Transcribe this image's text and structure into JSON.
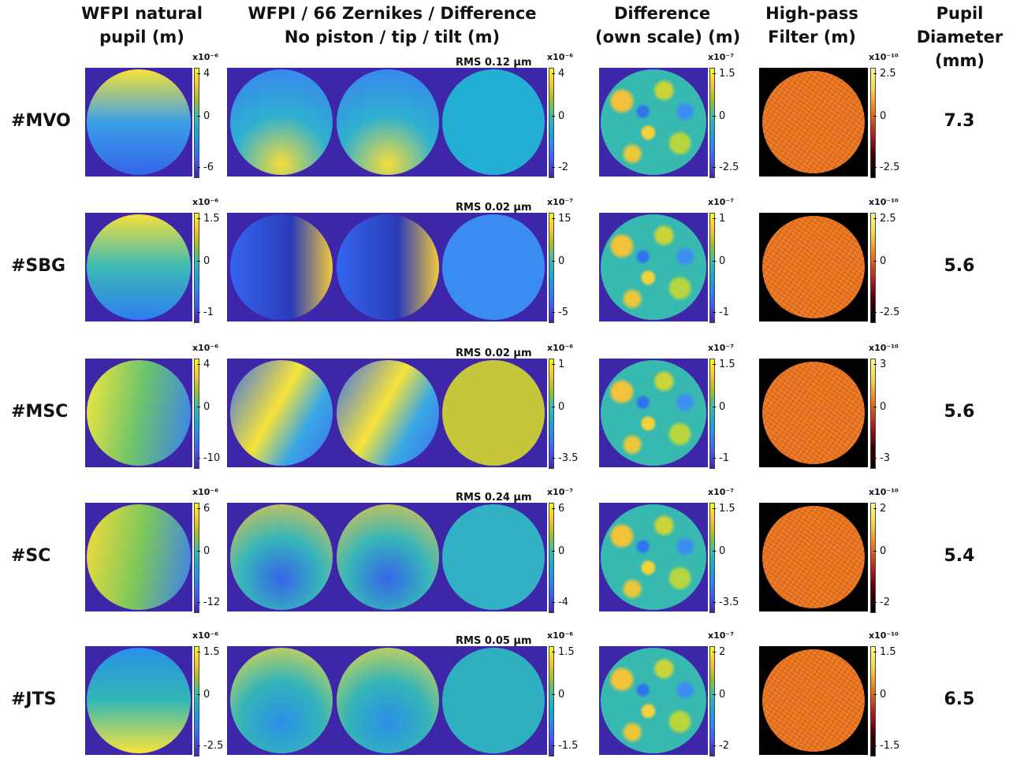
{
  "headers": {
    "col1": [
      "WFPI natural",
      "pupil (m)"
    ],
    "col2": [
      "WFPI / 66 Zernikes / Difference",
      "No piston / tip / tilt  (m)"
    ],
    "col3": [
      "Difference",
      "(own scale) (m)"
    ],
    "col4": [
      "High-pass",
      "Filter (m)"
    ],
    "col5": [
      "Pupil",
      "Diameter",
      "(mm)"
    ]
  },
  "rows": [
    {
      "label": "#MVO",
      "diameter": "7.3",
      "rms": "RMS 0.12 µm",
      "cb1": {
        "exp": "x10⁻⁶",
        "ticks": [
          "4",
          "0",
          "-6"
        ]
      },
      "cb2": {
        "exp": "x10⁻⁶",
        "ticks": [
          "4",
          "0",
          "-2"
        ]
      },
      "cb3": {
        "exp": "x10⁻⁷",
        "ticks": [
          "1.5",
          "0",
          "-2.5"
        ]
      },
      "cb4": {
        "exp": "x10⁻¹⁰",
        "ticks": [
          "2.5",
          "0",
          "-2.5"
        ]
      },
      "colors": {
        "natural": [
          "#f8e236",
          "#3aa0e8",
          "#3565e8"
        ],
        "zern": [
          "#3a7ff5",
          "#2fb0d0",
          "#f7dd3a"
        ],
        "diff": "#23aed4"
      }
    },
    {
      "label": "#SBG",
      "diameter": "5.6",
      "rms": "RMS 0.02 µm",
      "cb1": {
        "exp": "x10⁻⁶",
        "ticks": [
          "1.5",
          "0",
          "-1"
        ]
      },
      "cb2": {
        "exp": "x10⁻⁷",
        "ticks": [
          "15",
          "0",
          "-5"
        ]
      },
      "cb3": {
        "exp": "x10⁻⁷",
        "ticks": [
          "1",
          "0",
          "-1"
        ]
      },
      "cb4": {
        "exp": "x10⁻¹⁰",
        "ticks": [
          "2.5",
          "0",
          "-2.5"
        ]
      },
      "colors": {
        "natural": [
          "#2f7df2",
          "#3ab9b4",
          "#f6e13c"
        ],
        "zern": [
          "#3465ef",
          "#2a3cb8",
          "#f3c93a"
        ],
        "diff": "#3b8cf2"
      }
    },
    {
      "label": "#MSC",
      "diameter": "5.6",
      "rms": "RMS 0.02 µm",
      "cb1": {
        "exp": "x10⁻⁶",
        "ticks": [
          "4",
          "0",
          "-10"
        ]
      },
      "cb2": {
        "exp": "x10⁻⁶",
        "ticks": [
          "1",
          "0",
          "-3.5"
        ]
      },
      "cb3": {
        "exp": "x10⁻⁷",
        "ticks": [
          "1.5",
          "0",
          "-1"
        ]
      },
      "cb4": {
        "exp": "x10⁻¹⁰",
        "ticks": [
          "3",
          "0",
          "-3"
        ]
      },
      "colors": {
        "natural": [
          "#f9e83a",
          "#6cc46b",
          "#3a7ff2"
        ],
        "zern": [
          "#f7e33a",
          "#3aa7e4",
          "#3a6ff0"
        ],
        "diff": "#c6c63a"
      }
    },
    {
      "label": "#SC",
      "diameter": "5.4",
      "rms": "RMS 0.24 µm",
      "cb1": {
        "exp": "x10⁻⁶",
        "ticks": [
          "6",
          "0",
          "-12"
        ]
      },
      "cb2": {
        "exp": "x10⁻⁷",
        "ticks": [
          "6",
          "0",
          "-4"
        ]
      },
      "cb3": {
        "exp": "x10⁻⁷",
        "ticks": [
          "1.5",
          "0",
          "-3.5"
        ]
      },
      "cb4": {
        "exp": "x10⁻¹⁰",
        "ticks": [
          "2",
          "0",
          "-2"
        ]
      },
      "colors": {
        "natural": [
          "#f7dc3a",
          "#7ec85a",
          "#3a7ff2"
        ],
        "zern": [
          "#f6c53c",
          "#37b6ba",
          "#3565e8"
        ],
        "diff": "#32b0c4"
      }
    },
    {
      "label": "#JTS",
      "diameter": "6.5",
      "rms": "RMS 0.05 µm",
      "cb1": {
        "exp": "x10⁻⁶",
        "ticks": [
          "1.5",
          "0",
          "-2.5"
        ]
      },
      "cb2": {
        "exp": "x10⁻⁶",
        "ticks": [
          "1.5",
          "0",
          "-1.5"
        ]
      },
      "cb3": {
        "exp": "x10⁻⁷",
        "ticks": [
          "2",
          "0",
          "-2"
        ]
      },
      "cb4": {
        "exp": "x10⁻¹⁰",
        "ticks": [
          "1.5",
          "0",
          "-1.5"
        ]
      },
      "colors": {
        "natural": [
          "#f8e43a",
          "#34b6b4",
          "#2a8fe8"
        ],
        "zern": [
          "#f6dc3a",
          "#35b4b8",
          "#2a8fe8"
        ],
        "diff": "#2fb0c0"
      }
    }
  ]
}
